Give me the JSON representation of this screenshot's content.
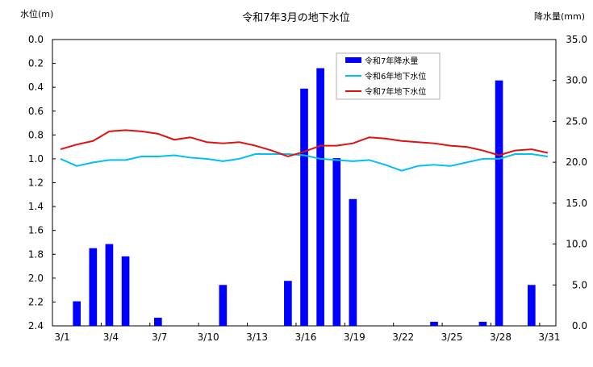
{
  "chart_data": {
    "type": "bar+line",
    "title": "令和7年3月の地下水位",
    "left_axis": {
      "label": "水位(m)",
      "range": [
        0.0,
        2.4
      ],
      "inverted": true,
      "ticks": [
        "0.0",
        "0.2",
        "0.4",
        "0.6",
        "0.8",
        "1.0",
        "1.2",
        "1.4",
        "1.6",
        "1.8",
        "2.0",
        "2.2",
        "2.4"
      ]
    },
    "right_axis": {
      "label": "降水量(mm)",
      "range": [
        0.0,
        35.0
      ],
      "ticks": [
        "35.0",
        "30.0",
        "25.0",
        "20.0",
        "15.0",
        "10.0",
        "5.0",
        "0.0"
      ]
    },
    "x_axis": {
      "days": [
        1,
        2,
        3,
        4,
        5,
        6,
        7,
        8,
        9,
        10,
        11,
        12,
        13,
        14,
        15,
        16,
        17,
        18,
        19,
        20,
        21,
        22,
        23,
        24,
        25,
        26,
        27,
        28,
        29,
        30,
        31
      ],
      "tick_labels": [
        "3/1",
        "3/4",
        "3/7",
        "3/10",
        "3/13",
        "3/16",
        "3/19",
        "3/22",
        "3/25",
        "3/28",
        "3/31"
      ]
    },
    "grid": false,
    "legend_position": "top-right",
    "series": [
      {
        "name": "令和7年降水量",
        "type": "bar",
        "axis": "right",
        "color": "#0000ff",
        "values": [
          0,
          3.0,
          9.5,
          10.0,
          8.5,
          0,
          1.0,
          0,
          0,
          0,
          5.0,
          0,
          0,
          0,
          5.5,
          29.0,
          31.5,
          20.5,
          15.5,
          0,
          0,
          0,
          0,
          0.5,
          0,
          0,
          0.5,
          30.0,
          0,
          5.0,
          0
        ]
      },
      {
        "name": "令和6年地下水位",
        "type": "line",
        "axis": "left",
        "color": "#00c0f0",
        "values": [
          1.0,
          1.06,
          1.03,
          1.01,
          1.01,
          0.98,
          0.98,
          0.97,
          0.99,
          1.0,
          1.02,
          1.0,
          0.96,
          0.96,
          0.96,
          0.97,
          1.0,
          1.01,
          1.02,
          1.01,
          1.05,
          1.1,
          1.06,
          1.05,
          1.06,
          1.03,
          1.0,
          1.0,
          0.96,
          0.96,
          0.98
        ]
      },
      {
        "name": "令和7年地下水位",
        "type": "line",
        "axis": "left",
        "color": "#e01010",
        "values": [
          0.92,
          0.88,
          0.85,
          0.77,
          0.76,
          0.77,
          0.79,
          0.84,
          0.82,
          0.86,
          0.87,
          0.86,
          0.89,
          0.93,
          0.98,
          0.94,
          0.89,
          0.89,
          0.87,
          0.82,
          0.83,
          0.85,
          0.86,
          0.87,
          0.89,
          0.9,
          0.93,
          0.97,
          0.93,
          0.92,
          0.95
        ]
      }
    ]
  }
}
